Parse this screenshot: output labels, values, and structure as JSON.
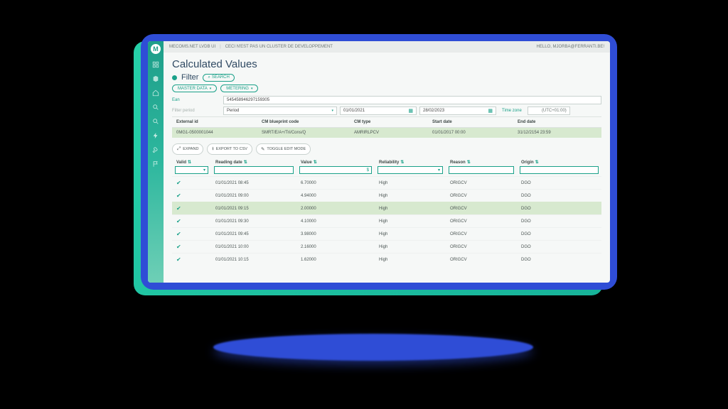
{
  "topbar": {
    "app": "MECOMS.NET LVDB UI",
    "env": "CECI N'EST PAS UN CLUSTER DE DEVELOPPEMENT",
    "user": "HELLO, MJORBA@FERRANTI.BE!"
  },
  "logo_letter": "M",
  "page_title": "Calculated Values",
  "filter_heading": "Filter",
  "search_btn": "SEARCH",
  "chips": {
    "master": "MASTER DATA",
    "metering": "METERING"
  },
  "filter_fields": {
    "ean_label": "Ean",
    "ean_value": "545458946297159305",
    "period_label": "Filter period",
    "period_value": "Period",
    "date_from": "01/01/2021",
    "date_to": "28/02/2023",
    "tz_label": "Time zone",
    "tz_value": "(UTC+01:00)"
  },
  "grid1": {
    "headers": {
      "ext": "External id",
      "bp": "CM blueprint code",
      "type": "CM type",
      "start": "Start date",
      "end": "End date"
    },
    "row": {
      "ext": "0MG1-0500001044",
      "bp": "SMRT/E/A+/Tri/Cons/Q",
      "type": "AMRIRLPCV",
      "start": "01/01/2017 00:00",
      "end": "31/12/2154 23:59"
    }
  },
  "toolbar2": {
    "expand": "EXPAND",
    "csv": "EXPORT TO CSV",
    "toggle": "TOGGLE EDIT MODE"
  },
  "grid2": {
    "headers": {
      "valid": "Valid",
      "date": "Reading date",
      "value": "Value",
      "rel": "Reliability",
      "reason": "Reason",
      "origin": "Origin"
    },
    "rows": [
      {
        "date": "01/01/2021 08:45",
        "value": "6.70000",
        "rel": "High",
        "reason": "ORIGCV",
        "origin": "DGO",
        "hl": false
      },
      {
        "date": "01/01/2021 09:00",
        "value": "4.94000",
        "rel": "High",
        "reason": "ORIGCV",
        "origin": "DGO",
        "hl": false
      },
      {
        "date": "01/01/2021 09:15",
        "value": "2.00000",
        "rel": "High",
        "reason": "ORIGCV",
        "origin": "DGO",
        "hl": true
      },
      {
        "date": "01/01/2021 09:30",
        "value": "4.10000",
        "rel": "High",
        "reason": "ORIGCV",
        "origin": "DGO",
        "hl": false
      },
      {
        "date": "01/01/2021 09:45",
        "value": "3.98000",
        "rel": "High",
        "reason": "ORIGCV",
        "origin": "DGO",
        "hl": false
      },
      {
        "date": "01/01/2021 10:00",
        "value": "2.16000",
        "rel": "High",
        "reason": "ORIGCV",
        "origin": "DGO",
        "hl": false
      },
      {
        "date": "01/01/2021 10:15",
        "value": "1.62000",
        "rel": "High",
        "reason": "ORIGCV",
        "origin": "DGO",
        "hl": false
      }
    ]
  },
  "colors": {
    "brand_blue": "#2f4dd6",
    "brand_teal": "#1aa189",
    "row_highlight": "#d7e9cf"
  }
}
